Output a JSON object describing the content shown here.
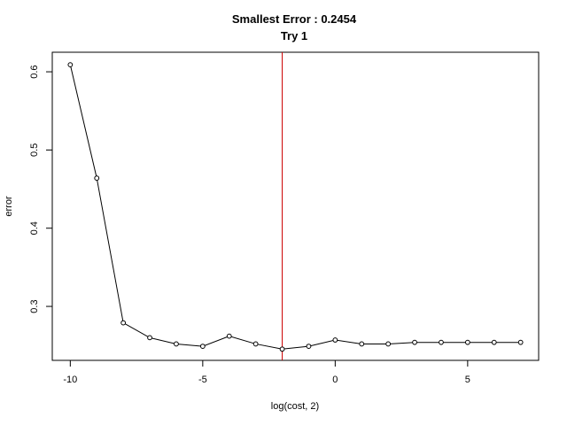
{
  "chart_data": {
    "type": "line",
    "title": "Smallest Error : 0.2454",
    "subtitle": "Try 1",
    "xlabel": "log(cost, 2)",
    "ylabel": "error",
    "x": [
      -10,
      -9,
      -8,
      -7,
      -6,
      -5,
      -4,
      -3,
      -2,
      -1,
      0,
      1,
      2,
      3,
      4,
      5,
      6,
      7
    ],
    "y": [
      0.609,
      0.464,
      0.279,
      0.26,
      0.252,
      0.249,
      0.262,
      0.252,
      0.2454,
      0.249,
      0.257,
      0.252,
      0.252,
      0.254,
      0.254,
      0.254,
      0.254,
      0.254
    ],
    "xlim": [
      -10.68,
      7.68
    ],
    "ylim": [
      0.231,
      0.625
    ],
    "xticks": [
      -10,
      -5,
      0,
      5
    ],
    "xtick_labels": [
      "-10",
      "-5",
      "0",
      "5"
    ],
    "yticks": [
      0.3,
      0.4,
      0.5,
      0.6
    ],
    "ytick_labels": [
      "0.3",
      "0.4",
      "0.5",
      "0.6"
    ],
    "vline": {
      "x": -2,
      "color": "#cc0000"
    },
    "line_color": "#000000",
    "grid": false,
    "legend": "none"
  }
}
